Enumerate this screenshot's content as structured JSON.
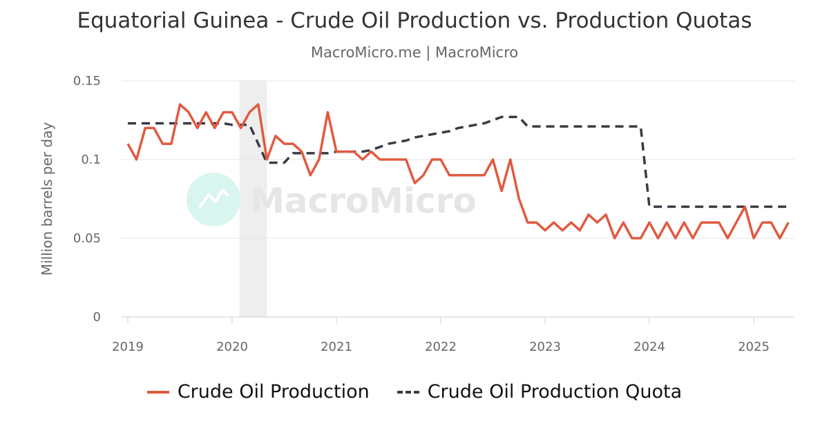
{
  "title": "Equatorial Guinea - Crude Oil Production vs. Production Quotas",
  "subtitle": "MacroMicro.me | MacroMicro",
  "watermark": "MacroMicro",
  "colors": {
    "production": "#e05a41",
    "quota": "#3a3a44",
    "recession": "#eeeeee",
    "grid": "#e6e6e6"
  },
  "chart_data": {
    "type": "line",
    "ylabel": "Million barrels per day",
    "ylim": [
      0,
      0.15
    ],
    "yticks": [
      "0",
      "0.05",
      "0.1",
      "0.15"
    ],
    "yticks_values": [
      0,
      0.05,
      0.1,
      0.15
    ],
    "xlim": [
      "2019-01",
      "2025-05"
    ],
    "xticks": [
      "2019",
      "2020",
      "2021",
      "2022",
      "2023",
      "2024",
      "2025"
    ],
    "grid": true,
    "legend_position": "bottom",
    "shaded_period": [
      "2020-02",
      "2020-05"
    ],
    "series": [
      {
        "name": "Crude Oil Production",
        "style": "solid",
        "x": [
          "2019-01",
          "2019-02",
          "2019-03",
          "2019-04",
          "2019-05",
          "2019-06",
          "2019-07",
          "2019-08",
          "2019-09",
          "2019-10",
          "2019-11",
          "2019-12",
          "2020-01",
          "2020-02",
          "2020-03",
          "2020-04",
          "2020-05",
          "2020-06",
          "2020-07",
          "2020-08",
          "2020-09",
          "2020-10",
          "2020-11",
          "2020-12",
          "2021-01",
          "2021-02",
          "2021-03",
          "2021-04",
          "2021-05",
          "2021-06",
          "2021-07",
          "2021-08",
          "2021-09",
          "2021-10",
          "2021-11",
          "2021-12",
          "2022-01",
          "2022-02",
          "2022-03",
          "2022-04",
          "2022-05",
          "2022-06",
          "2022-07",
          "2022-08",
          "2022-09",
          "2022-10",
          "2022-11",
          "2022-12",
          "2023-01",
          "2023-02",
          "2023-03",
          "2023-04",
          "2023-05",
          "2023-06",
          "2023-07",
          "2023-08",
          "2023-09",
          "2023-10",
          "2023-11",
          "2023-12",
          "2024-01",
          "2024-02",
          "2024-03",
          "2024-04",
          "2024-05",
          "2024-06",
          "2024-07",
          "2024-08",
          "2024-09",
          "2024-10",
          "2024-11",
          "2024-12",
          "2025-01",
          "2025-02",
          "2025-03",
          "2025-04",
          "2025-05"
        ],
        "values": [
          0.11,
          0.1,
          0.12,
          0.12,
          0.11,
          0.11,
          0.135,
          0.13,
          0.12,
          0.13,
          0.12,
          0.13,
          0.13,
          0.12,
          0.13,
          0.135,
          0.1,
          0.115,
          0.11,
          0.11,
          0.105,
          0.09,
          0.1,
          0.13,
          0.105,
          0.105,
          0.105,
          0.1,
          0.105,
          0.1,
          0.1,
          0.1,
          0.1,
          0.085,
          0.09,
          0.1,
          0.1,
          0.09,
          0.09,
          0.09,
          0.09,
          0.09,
          0.1,
          0.08,
          0.1,
          0.075,
          0.06,
          0.06,
          0.055,
          0.06,
          0.055,
          0.06,
          0.055,
          0.065,
          0.06,
          0.065,
          0.05,
          0.06,
          0.05,
          0.05,
          0.06,
          0.05,
          0.06,
          0.05,
          0.06,
          0.05,
          0.06,
          0.06,
          0.06,
          0.05,
          0.06,
          0.07,
          0.05,
          0.06,
          0.06,
          0.05,
          0.06
        ]
      },
      {
        "name": "Crude Oil Production Quota",
        "style": "dashed",
        "x": [
          "2019-01",
          "2019-02",
          "2019-03",
          "2019-04",
          "2019-05",
          "2019-06",
          "2019-07",
          "2019-08",
          "2019-09",
          "2019-10",
          "2019-11",
          "2019-12",
          "2020-01",
          "2020-02",
          "2020-03",
          "2020-04",
          "2020-05",
          "2020-06",
          "2020-07",
          "2020-08",
          "2020-09",
          "2020-10",
          "2020-11",
          "2020-12",
          "2021-01",
          "2021-02",
          "2021-03",
          "2021-04",
          "2021-05",
          "2021-06",
          "2021-07",
          "2021-08",
          "2021-09",
          "2021-10",
          "2021-11",
          "2021-12",
          "2022-01",
          "2022-02",
          "2022-03",
          "2022-04",
          "2022-05",
          "2022-06",
          "2022-07",
          "2022-08",
          "2022-09",
          "2022-10",
          "2022-11",
          "2022-12",
          "2023-01",
          "2023-02",
          "2023-03",
          "2023-04",
          "2023-05",
          "2023-06",
          "2023-07",
          "2023-08",
          "2023-09",
          "2023-10",
          "2023-11",
          "2023-12",
          "2024-01",
          "2024-02",
          "2024-03",
          "2024-04",
          "2024-05",
          "2024-06",
          "2024-07",
          "2024-08",
          "2024-09",
          "2024-10",
          "2024-11",
          "2024-12",
          "2025-01",
          "2025-02",
          "2025-03",
          "2025-04",
          "2025-05"
        ],
        "values": [
          0.123,
          0.123,
          0.123,
          0.123,
          0.123,
          0.123,
          0.123,
          0.123,
          0.123,
          0.123,
          0.123,
          0.123,
          0.122,
          0.122,
          0.122,
          0.11,
          0.098,
          0.098,
          0.098,
          0.104,
          0.104,
          0.104,
          0.104,
          0.104,
          0.105,
          0.105,
          0.105,
          0.105,
          0.106,
          0.108,
          0.11,
          0.111,
          0.112,
          0.114,
          0.115,
          0.116,
          0.117,
          0.118,
          0.12,
          0.121,
          0.122,
          0.123,
          0.125,
          0.127,
          0.127,
          0.127,
          0.121,
          0.121,
          0.121,
          0.121,
          0.121,
          0.121,
          0.121,
          0.121,
          0.121,
          0.121,
          0.121,
          0.121,
          0.121,
          0.121,
          0.07,
          0.07,
          0.07,
          0.07,
          0.07,
          0.07,
          0.07,
          0.07,
          0.07,
          0.07,
          0.07,
          0.07,
          0.07,
          0.07,
          0.07,
          0.07,
          0.07
        ]
      }
    ]
  }
}
